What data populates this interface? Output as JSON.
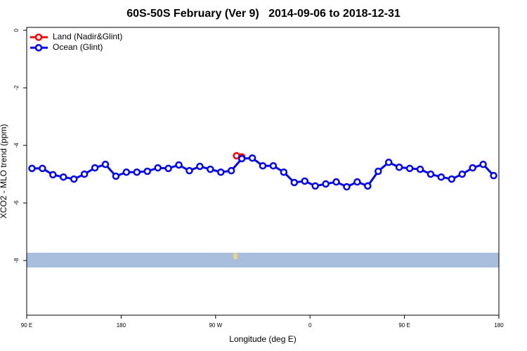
{
  "chart_data": {
    "type": "line",
    "title": "60S-50S February (Ver 9)   2014-09-06 to 2018-12-31",
    "xlabel": "Longitude (deg E)",
    "ylabel": "XCO2 - MLO trend (ppm)",
    "xlim": [
      90,
      540
    ],
    "ylim": [
      -9.9,
      0.1
    ],
    "xticks": [
      {
        "value": 90,
        "label": "90 E"
      },
      180,
      {
        "value": 270,
        "label": "90 W"
      },
      {
        "value": 360,
        "label": "0"
      },
      {
        "value": 450,
        "label": "90 E"
      },
      {
        "value": 540,
        "label": "180"
      }
    ],
    "yticks": [
      0,
      -2,
      -4,
      -6,
      -8
    ],
    "legend": "upper left",
    "series": [
      {
        "name": "Land (Nadir&Glint)",
        "color": "#ff0000",
        "x": [
          290,
          295
        ],
        "values": [
          -4.36,
          -4.4
        ]
      },
      {
        "name": "Ocean (Glint)",
        "color": "#0000ff",
        "x": [
          95,
          105,
          115,
          125,
          135,
          145,
          155,
          165,
          175,
          185,
          195,
          205,
          215,
          225,
          235,
          245,
          255,
          265,
          275,
          285,
          295,
          305,
          315,
          325,
          335,
          345,
          355,
          365,
          375,
          385,
          395,
          405,
          415,
          425,
          435,
          445,
          455,
          465,
          475,
          485,
          495,
          505,
          515,
          525,
          535
        ],
        "values": [
          -4.8,
          -4.8,
          -5.02,
          -5.1,
          -5.17,
          -5.0,
          -4.78,
          -4.66,
          -5.07,
          -4.93,
          -4.93,
          -4.9,
          -4.78,
          -4.8,
          -4.68,
          -4.88,
          -4.73,
          -4.83,
          -4.93,
          -4.88,
          -4.46,
          -4.44,
          -4.71,
          -4.71,
          -4.93,
          -5.29,
          -5.24,
          -5.41,
          -5.34,
          -5.27,
          -5.44,
          -5.27,
          -5.41,
          -4.9,
          -4.59,
          -4.76,
          -4.8,
          -4.83,
          -5.0,
          -5.1,
          -5.17,
          -5.0,
          -4.78,
          -4.66,
          -5.05
        ]
      }
    ]
  }
}
